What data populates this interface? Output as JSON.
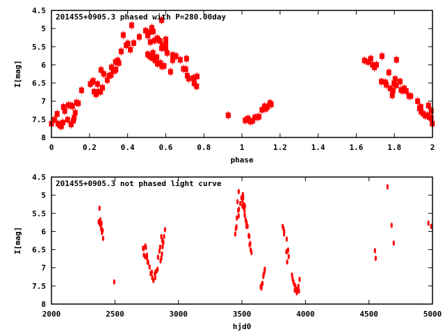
{
  "chart_data": [
    {
      "type": "scatter",
      "title": "201455+0905.3 phased with P=280.00day",
      "xlabel": "phase",
      "ylabel": "I[mag]",
      "xlim": [
        0,
        2
      ],
      "ylim": [
        4.5,
        8
      ],
      "y_inverted": true,
      "grid": false,
      "xticks": [
        "0",
        "0.2",
        "0.4",
        "0.6",
        "0.8",
        "1",
        "1.2",
        "1.4",
        "1.6",
        "1.8",
        "2"
      ],
      "xtick_values": [
        0,
        0.2,
        0.4,
        0.6,
        0.8,
        1,
        1.2,
        1.4,
        1.6,
        1.8,
        2
      ],
      "yticks": [
        "4.5",
        "5",
        "5.5",
        "6",
        "6.5",
        "7",
        "7.5",
        "8"
      ],
      "ytick_values": [
        4.5,
        5,
        5.5,
        6,
        6.5,
        7,
        7.5,
        8
      ],
      "color": "#ff0000",
      "points": [
        [
          0.0,
          7.62
        ],
        [
          0.016,
          7.51
        ],
        [
          0.03,
          7.35
        ],
        [
          0.034,
          7.62
        ],
        [
          0.044,
          7.67
        ],
        [
          0.052,
          7.69
        ],
        [
          0.06,
          7.59
        ],
        [
          0.063,
          7.16
        ],
        [
          0.07,
          7.27
        ],
        [
          0.085,
          7.51
        ],
        [
          0.089,
          7.11
        ],
        [
          0.1,
          7.12
        ],
        [
          0.103,
          7.64
        ],
        [
          0.11,
          7.14
        ],
        [
          0.115,
          7.54
        ],
        [
          0.119,
          7.46
        ],
        [
          0.125,
          7.32
        ],
        [
          0.131,
          7.04
        ],
        [
          0.141,
          7.06
        ],
        [
          0.158,
          6.7
        ],
        [
          0.204,
          6.53
        ],
        [
          0.214,
          6.48
        ],
        [
          0.219,
          6.44
        ],
        [
          0.224,
          6.74
        ],
        [
          0.234,
          6.81
        ],
        [
          0.242,
          6.53
        ],
        [
          0.248,
          6.74
        ],
        [
          0.258,
          6.74
        ],
        [
          0.26,
          6.14
        ],
        [
          0.268,
          6.63
        ],
        [
          0.275,
          6.25
        ],
        [
          0.293,
          6.42
        ],
        [
          0.303,
          6.3
        ],
        [
          0.313,
          6.28
        ],
        [
          0.315,
          6.07
        ],
        [
          0.324,
          6.16
        ],
        [
          0.332,
          6.16
        ],
        [
          0.338,
          6.13
        ],
        [
          0.336,
          5.92
        ],
        [
          0.348,
          5.88
        ],
        [
          0.354,
          5.95
        ],
        [
          0.366,
          5.63
        ],
        [
          0.377,
          5.18
        ],
        [
          0.392,
          5.46
        ],
        [
          0.401,
          5.41
        ],
        [
          0.414,
          5.58
        ],
        [
          0.421,
          4.91
        ],
        [
          0.432,
          5.4
        ],
        [
          0.461,
          5.23
        ],
        [
          0.494,
          5.06
        ],
        [
          0.505,
          5.19
        ],
        [
          0.512,
          5.11
        ],
        [
          0.519,
          5.37
        ],
        [
          0.527,
          4.98
        ],
        [
          0.534,
          5.08
        ],
        [
          0.505,
          5.71
        ],
        [
          0.512,
          5.74
        ],
        [
          0.52,
          5.78
        ],
        [
          0.533,
          5.67
        ],
        [
          0.533,
          5.82
        ],
        [
          0.541,
          5.33
        ],
        [
          0.545,
          5.88
        ],
        [
          0.553,
          5.79
        ],
        [
          0.556,
          5.27
        ],
        [
          0.557,
          5.97
        ],
        [
          0.57,
          5.34
        ],
        [
          0.572,
          5.95
        ],
        [
          0.578,
          4.77
        ],
        [
          0.578,
          5.54
        ],
        [
          0.58,
          6.04
        ],
        [
          0.591,
          6.03
        ],
        [
          0.584,
          5.48
        ],
        [
          0.6,
          5.3
        ],
        [
          0.6,
          5.4
        ],
        [
          0.6,
          5.55
        ],
        [
          0.607,
          5.67
        ],
        [
          0.625,
          6.19
        ],
        [
          0.636,
          5.73
        ],
        [
          0.636,
          5.87
        ],
        [
          0.646,
          5.77
        ],
        [
          0.654,
          5.76
        ],
        [
          0.676,
          5.86
        ],
        [
          0.693,
          6.11
        ],
        [
          0.705,
          6.12
        ],
        [
          0.709,
          5.83
        ],
        [
          0.713,
          6.3
        ],
        [
          0.72,
          6.38
        ],
        [
          0.746,
          6.36
        ],
        [
          0.749,
          6.51
        ],
        [
          0.762,
          6.59
        ],
        [
          0.764,
          6.32
        ],
        [
          0.928,
          7.39
        ],
        [
          1.017,
          7.53
        ],
        [
          1.032,
          7.48
        ],
        [
          1.044,
          7.56
        ],
        [
          1.056,
          7.54
        ],
        [
          1.068,
          7.45
        ],
        [
          1.08,
          7.44
        ],
        [
          1.089,
          7.43
        ],
        [
          1.105,
          7.24
        ],
        [
          1.119,
          7.14
        ],
        [
          1.125,
          7.21
        ],
        [
          1.134,
          7.16
        ],
        [
          1.147,
          7.05
        ],
        [
          1.154,
          7.09
        ],
        [
          1.643,
          5.88
        ],
        [
          1.662,
          5.92
        ],
        [
          1.676,
          5.83
        ],
        [
          1.685,
          6.0
        ],
        [
          1.696,
          6.07
        ],
        [
          1.706,
          6.0
        ],
        [
          1.732,
          6.46
        ],
        [
          1.735,
          5.76
        ],
        [
          1.753,
          6.48
        ],
        [
          1.758,
          6.55
        ],
        [
          1.771,
          6.21
        ],
        [
          1.778,
          6.65
        ],
        [
          1.789,
          6.84
        ],
        [
          1.793,
          6.71
        ],
        [
          1.798,
          6.51
        ],
        [
          1.804,
          6.39
        ],
        [
          1.81,
          6.56
        ],
        [
          1.811,
          5.86
        ],
        [
          1.83,
          6.46
        ],
        [
          1.835,
          6.69
        ],
        [
          1.843,
          6.71
        ],
        [
          1.852,
          6.65
        ],
        [
          1.862,
          6.72
        ],
        [
          1.877,
          6.86
        ],
        [
          1.886,
          6.86
        ],
        [
          1.922,
          7.0
        ],
        [
          1.932,
          7.2
        ],
        [
          1.939,
          7.16
        ],
        [
          1.94,
          7.29
        ],
        [
          1.95,
          7.34
        ],
        [
          1.962,
          7.4
        ],
        [
          1.972,
          7.39
        ],
        [
          1.979,
          7.12
        ],
        [
          1.984,
          7.44
        ],
        [
          1.993,
          7.27
        ],
        [
          1.993,
          7.47
        ],
        [
          1.999,
          7.62
        ]
      ]
    },
    {
      "type": "scatter",
      "title": "201455+0905.3 not phased light curve",
      "xlabel": "hjd0",
      "ylabel": "I[mag]",
      "xlim": [
        2000,
        5000
      ],
      "ylim": [
        4.5,
        8
      ],
      "y_inverted": true,
      "grid": false,
      "xticks": [
        "2000",
        "2500",
        "3000",
        "3500",
        "4000",
        "4500",
        "5000"
      ],
      "xtick_values": [
        2000,
        2500,
        3000,
        3500,
        4000,
        4500,
        5000
      ],
      "yticks": [
        "4.5",
        "5",
        "5.5",
        "6",
        "6.5",
        "7",
        "7.5",
        "8"
      ],
      "ytick_values": [
        4.5,
        5,
        5.5,
        6,
        6.5,
        7,
        7.5,
        8
      ],
      "color": "#ff0000",
      "points": [
        [
          2379,
          5.36
        ],
        [
          2372,
          5.73
        ],
        [
          2379,
          5.78
        ],
        [
          2385,
          5.68
        ],
        [
          2389,
          5.84
        ],
        [
          2394,
          5.78
        ],
        [
          2392,
          5.93
        ],
        [
          2398,
          6.03
        ],
        [
          2403,
          5.97
        ],
        [
          2407,
          6.19
        ],
        [
          2494,
          7.39
        ],
        [
          2721,
          6.46
        ],
        [
          2726,
          6.47
        ],
        [
          2728,
          6.65
        ],
        [
          2739,
          6.4
        ],
        [
          2744,
          6.44
        ],
        [
          2739,
          6.7
        ],
        [
          2752,
          6.65
        ],
        [
          2752,
          6.72
        ],
        [
          2757,
          6.85
        ],
        [
          2762,
          6.85
        ],
        [
          2773,
          6.98
        ],
        [
          2781,
          7.16
        ],
        [
          2790,
          7.12
        ],
        [
          2794,
          7.27
        ],
        [
          2803,
          7.35
        ],
        [
          2814,
          7.16
        ],
        [
          2817,
          7.27
        ],
        [
          2821,
          7.11
        ],
        [
          2830,
          7.08
        ],
        [
          2836,
          7.04
        ],
        [
          2839,
          6.71
        ],
        [
          2850,
          6.54
        ],
        [
          2856,
          6.43
        ],
        [
          2859,
          6.81
        ],
        [
          2865,
          6.74
        ],
        [
          2870,
          6.62
        ],
        [
          2876,
          6.42
        ],
        [
          2865,
          6.14
        ],
        [
          2872,
          6.25
        ],
        [
          2881,
          6.3
        ],
        [
          2887,
          6.14
        ],
        [
          2894,
          5.95
        ],
        [
          3447,
          6.07
        ],
        [
          3452,
          5.92
        ],
        [
          3457,
          5.87
        ],
        [
          3460,
          5.63
        ],
        [
          3465,
          5.18
        ],
        [
          3471,
          5.42
        ],
        [
          3474,
          5.57
        ],
        [
          3476,
          5.39
        ],
        [
          3474,
          4.9
        ],
        [
          3487,
          5.23
        ],
        [
          3496,
          5.07
        ],
        [
          3504,
          5.16
        ],
        [
          3507,
          4.98
        ],
        [
          3509,
          5.07
        ],
        [
          3504,
          5.3
        ],
        [
          3511,
          5.33
        ],
        [
          3516,
          5.26
        ],
        [
          3520,
          5.42
        ],
        [
          3522,
          5.55
        ],
        [
          3523,
          5.3
        ],
        [
          3529,
          5.68
        ],
        [
          3534,
          5.74
        ],
        [
          3536,
          5.86
        ],
        [
          3544,
          5.86
        ],
        [
          3538,
          5.79
        ],
        [
          3553,
          6.11
        ],
        [
          3558,
          6.14
        ],
        [
          3560,
          6.37
        ],
        [
          3565,
          6.33
        ],
        [
          3569,
          6.51
        ],
        [
          3575,
          6.58
        ],
        [
          3648,
          7.52
        ],
        [
          3653,
          7.56
        ],
        [
          3657,
          7.46
        ],
        [
          3662,
          7.43
        ],
        [
          3668,
          7.24
        ],
        [
          3671,
          7.18
        ],
        [
          3677,
          7.11
        ],
        [
          3680,
          7.04
        ],
        [
          3821,
          5.86
        ],
        [
          3827,
          5.92
        ],
        [
          3832,
          6.0
        ],
        [
          3832,
          6.07
        ],
        [
          3852,
          6.21
        ],
        [
          3850,
          6.56
        ],
        [
          3859,
          6.54
        ],
        [
          3863,
          6.51
        ],
        [
          3868,
          6.69
        ],
        [
          3856,
          6.84
        ],
        [
          3894,
          7.2
        ],
        [
          3899,
          7.31
        ],
        [
          3905,
          7.39
        ],
        [
          3912,
          7.46
        ],
        [
          3921,
          7.51
        ],
        [
          3916,
          7.62
        ],
        [
          3927,
          7.62
        ],
        [
          3932,
          7.69
        ],
        [
          3938,
          7.59
        ],
        [
          3945,
          7.51
        ],
        [
          3949,
          7.64
        ],
        [
          3954,
          7.32
        ],
        [
          4547,
          6.53
        ],
        [
          4553,
          6.74
        ],
        [
          4646,
          4.77
        ],
        [
          4678,
          5.83
        ],
        [
          4695,
          6.32
        ],
        [
          4968,
          5.77
        ],
        [
          4990,
          5.86
        ]
      ]
    }
  ]
}
